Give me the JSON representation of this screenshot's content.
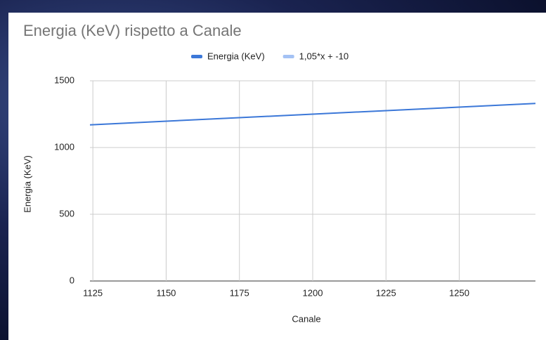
{
  "chart_data": {
    "type": "line",
    "title": "Energia (KeV) rispetto a Canale",
    "x_label": "Canale",
    "y_label": "Energia (KeV)",
    "x": [
      1124,
      1276
    ],
    "series": [
      {
        "name": "Energia (KeV)",
        "color": "#3c78d8",
        "values": [
          1170,
          1330
        ]
      },
      {
        "name": "1,05*x + -10",
        "color": "#a4c2f4",
        "values": [
          1170,
          1330
        ]
      }
    ],
    "xlim": [
      1124,
      1276
    ],
    "xticks": [
      1125,
      1150,
      1175,
      1200,
      1225,
      1250
    ],
    "ylim": [
      0,
      1500
    ],
    "yticks": [
      0,
      500,
      1000,
      1500
    ],
    "grid": true,
    "legend": "top"
  }
}
